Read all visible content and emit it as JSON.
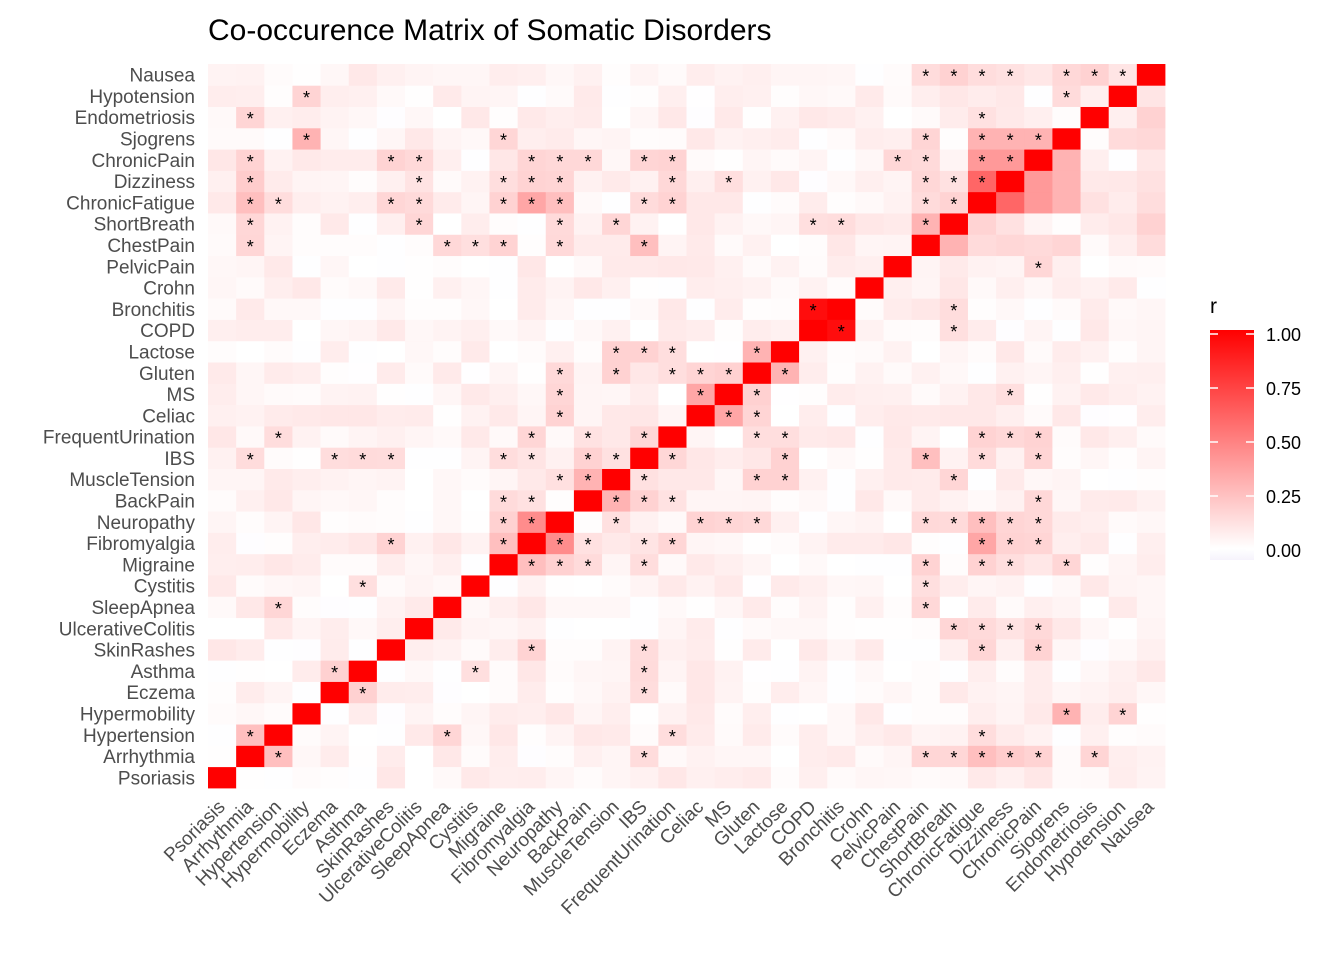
{
  "chart_data": {
    "type": "heatmap",
    "title": "Co-occurence Matrix of Somatic Disorders",
    "xlabel": "",
    "ylabel": "",
    "variables": [
      "Psoriasis",
      "Arrhythmia",
      "Hypertension",
      "Hypermobility",
      "Eczema",
      "Asthma",
      "SkinRashes",
      "UlcerativeColitis",
      "SleepApnea",
      "Cystitis",
      "Migraine",
      "Fibromyalgia",
      "Neuropathy",
      "BackPain",
      "MuscleTension",
      "IBS",
      "FrequentUrination",
      "Celiac",
      "MS",
      "Gluten",
      "Lactose",
      "COPD",
      "Bronchitis",
      "Crohn",
      "PelvicPain",
      "ChestPain",
      "ShortBreath",
      "ChronicFatigue",
      "Dizziness",
      "ChronicPain",
      "Sjogrens",
      "Endometriosis",
      "Hypotension",
      "Nausea"
    ],
    "significant_pairs": [
      [
        "Nausea",
        "ChestPain"
      ],
      [
        "Nausea",
        "ShortBreath"
      ],
      [
        "Nausea",
        "ChronicFatigue"
      ],
      [
        "Nausea",
        "Dizziness"
      ],
      [
        "Nausea",
        "Sjogrens"
      ],
      [
        "Nausea",
        "Endometriosis"
      ],
      [
        "Nausea",
        "Hypotension"
      ],
      [
        "Hypotension",
        "Hypermobility"
      ],
      [
        "Hypotension",
        "Sjogrens"
      ],
      [
        "Endometriosis",
        "Arrhythmia"
      ],
      [
        "Endometriosis",
        "ChronicFatigue"
      ],
      [
        "Sjogrens",
        "Hypermobility"
      ],
      [
        "Sjogrens",
        "Migraine"
      ],
      [
        "Sjogrens",
        "ChestPain"
      ],
      [
        "Sjogrens",
        "ChronicFatigue"
      ],
      [
        "Sjogrens",
        "Dizziness"
      ],
      [
        "Sjogrens",
        "ChronicPain"
      ],
      [
        "ChronicPain",
        "Arrhythmia"
      ],
      [
        "ChronicPain",
        "SkinRashes"
      ],
      [
        "ChronicPain",
        "UlcerativeColitis"
      ],
      [
        "ChronicPain",
        "Fibromyalgia"
      ],
      [
        "ChronicPain",
        "Neuropathy"
      ],
      [
        "ChronicPain",
        "BackPain"
      ],
      [
        "ChronicPain",
        "IBS"
      ],
      [
        "ChronicPain",
        "FrequentUrination"
      ],
      [
        "ChronicPain",
        "PelvicPain"
      ],
      [
        "ChronicPain",
        "ChestPain"
      ],
      [
        "ChronicPain",
        "ChronicFatigue"
      ],
      [
        "ChronicPain",
        "Dizziness"
      ],
      [
        "Dizziness",
        "Arrhythmia"
      ],
      [
        "Dizziness",
        "UlcerativeColitis"
      ],
      [
        "Dizziness",
        "Migraine"
      ],
      [
        "Dizziness",
        "Fibromyalgia"
      ],
      [
        "Dizziness",
        "Neuropathy"
      ],
      [
        "Dizziness",
        "FrequentUrination"
      ],
      [
        "Dizziness",
        "MS"
      ],
      [
        "Dizziness",
        "ChestPain"
      ],
      [
        "Dizziness",
        "ShortBreath"
      ],
      [
        "Dizziness",
        "ChronicFatigue"
      ],
      [
        "ChronicFatigue",
        "Arrhythmia"
      ],
      [
        "ChronicFatigue",
        "Hypertension"
      ],
      [
        "ChronicFatigue",
        "SkinRashes"
      ],
      [
        "ChronicFatigue",
        "UlcerativeColitis"
      ],
      [
        "ChronicFatigue",
        "Migraine"
      ],
      [
        "ChronicFatigue",
        "Fibromyalgia"
      ],
      [
        "ChronicFatigue",
        "Neuropathy"
      ],
      [
        "ChronicFatigue",
        "IBS"
      ],
      [
        "ChronicFatigue",
        "FrequentUrination"
      ],
      [
        "ChronicFatigue",
        "ChestPain"
      ],
      [
        "ChronicFatigue",
        "ShortBreath"
      ],
      [
        "ShortBreath",
        "Arrhythmia"
      ],
      [
        "ShortBreath",
        "UlcerativeColitis"
      ],
      [
        "ShortBreath",
        "Neuropathy"
      ],
      [
        "ShortBreath",
        "MuscleTension"
      ],
      [
        "ShortBreath",
        "COPD"
      ],
      [
        "ShortBreath",
        "Bronchitis"
      ],
      [
        "ShortBreath",
        "ChestPain"
      ],
      [
        "ChestPain",
        "Arrhythmia"
      ],
      [
        "ChestPain",
        "SleepApnea"
      ],
      [
        "ChestPain",
        "Cystitis"
      ],
      [
        "ChestPain",
        "Migraine"
      ],
      [
        "ChestPain",
        "Neuropathy"
      ],
      [
        "ChestPain",
        "IBS"
      ],
      [
        "PelvicPain",
        "ChronicPain"
      ],
      [
        "Bronchitis",
        "COPD"
      ],
      [
        "Bronchitis",
        "ShortBreath"
      ],
      [
        "COPD",
        "Bronchitis"
      ],
      [
        "COPD",
        "ShortBreath"
      ],
      [
        "Lactose",
        "MuscleTension"
      ],
      [
        "Lactose",
        "IBS"
      ],
      [
        "Lactose",
        "FrequentUrination"
      ],
      [
        "Lactose",
        "Gluten"
      ],
      [
        "Gluten",
        "Neuropathy"
      ],
      [
        "Gluten",
        "MuscleTension"
      ],
      [
        "Gluten",
        "FrequentUrination"
      ],
      [
        "Gluten",
        "Celiac"
      ],
      [
        "Gluten",
        "MS"
      ],
      [
        "Gluten",
        "Lactose"
      ],
      [
        "MS",
        "Neuropathy"
      ],
      [
        "MS",
        "Celiac"
      ],
      [
        "MS",
        "Gluten"
      ],
      [
        "MS",
        "Dizziness"
      ],
      [
        "Celiac",
        "Neuropathy"
      ],
      [
        "Celiac",
        "MS"
      ],
      [
        "Celiac",
        "Gluten"
      ],
      [
        "FrequentUrination",
        "Hypertension"
      ],
      [
        "FrequentUrination",
        "Fibromyalgia"
      ],
      [
        "FrequentUrination",
        "BackPain"
      ],
      [
        "FrequentUrination",
        "IBS"
      ],
      [
        "FrequentUrination",
        "Gluten"
      ],
      [
        "FrequentUrination",
        "Lactose"
      ],
      [
        "FrequentUrination",
        "ChronicFatigue"
      ],
      [
        "FrequentUrination",
        "Dizziness"
      ],
      [
        "FrequentUrination",
        "ChronicPain"
      ],
      [
        "IBS",
        "Arrhythmia"
      ],
      [
        "IBS",
        "Eczema"
      ],
      [
        "IBS",
        "Asthma"
      ],
      [
        "IBS",
        "SkinRashes"
      ],
      [
        "IBS",
        "Migraine"
      ],
      [
        "IBS",
        "Fibromyalgia"
      ],
      [
        "IBS",
        "BackPain"
      ],
      [
        "IBS",
        "MuscleTension"
      ],
      [
        "IBS",
        "FrequentUrination"
      ],
      [
        "IBS",
        "Lactose"
      ],
      [
        "IBS",
        "ChestPain"
      ],
      [
        "IBS",
        "ChronicFatigue"
      ],
      [
        "IBS",
        "ChronicPain"
      ],
      [
        "MuscleTension",
        "Neuropathy"
      ],
      [
        "MuscleTension",
        "BackPain"
      ],
      [
        "MuscleTension",
        "IBS"
      ],
      [
        "MuscleTension",
        "Gluten"
      ],
      [
        "MuscleTension",
        "Lactose"
      ],
      [
        "MuscleTension",
        "ShortBreath"
      ],
      [
        "BackPain",
        "Migraine"
      ],
      [
        "BackPain",
        "Fibromyalgia"
      ],
      [
        "BackPain",
        "MuscleTension"
      ],
      [
        "BackPain",
        "IBS"
      ],
      [
        "BackPain",
        "FrequentUrination"
      ],
      [
        "BackPain",
        "ChronicPain"
      ],
      [
        "Neuropathy",
        "Migraine"
      ],
      [
        "Neuropathy",
        "Fibromyalgia"
      ],
      [
        "Neuropathy",
        "MuscleTension"
      ],
      [
        "Neuropathy",
        "Celiac"
      ],
      [
        "Neuropathy",
        "MS"
      ],
      [
        "Neuropathy",
        "Gluten"
      ],
      [
        "Neuropathy",
        "ChestPain"
      ],
      [
        "Neuropathy",
        "ShortBreath"
      ],
      [
        "Neuropathy",
        "ChronicFatigue"
      ],
      [
        "Neuropathy",
        "Dizziness"
      ],
      [
        "Neuropathy",
        "ChronicPain"
      ],
      [
        "Fibromyalgia",
        "SkinRashes"
      ],
      [
        "Fibromyalgia",
        "Migraine"
      ],
      [
        "Fibromyalgia",
        "Neuropathy"
      ],
      [
        "Fibromyalgia",
        "BackPain"
      ],
      [
        "Fibromyalgia",
        "IBS"
      ],
      [
        "Fibromyalgia",
        "FrequentUrination"
      ],
      [
        "Fibromyalgia",
        "ChronicFatigue"
      ],
      [
        "Fibromyalgia",
        "Dizziness"
      ],
      [
        "Fibromyalgia",
        "ChronicPain"
      ],
      [
        "Migraine",
        "Fibromyalgia"
      ],
      [
        "Migraine",
        "Neuropathy"
      ],
      [
        "Migraine",
        "BackPain"
      ],
      [
        "Migraine",
        "IBS"
      ],
      [
        "Migraine",
        "ChestPain"
      ],
      [
        "Migraine",
        "ChronicFatigue"
      ],
      [
        "Migraine",
        "Dizziness"
      ],
      [
        "Migraine",
        "Sjogrens"
      ],
      [
        "Cystitis",
        "Asthma"
      ],
      [
        "Cystitis",
        "ChestPain"
      ],
      [
        "SleepApnea",
        "Hypertension"
      ],
      [
        "SleepApnea",
        "ChestPain"
      ],
      [
        "UlcerativeColitis",
        "ShortBreath"
      ],
      [
        "UlcerativeColitis",
        "ChronicFatigue"
      ],
      [
        "UlcerativeColitis",
        "Dizziness"
      ],
      [
        "UlcerativeColitis",
        "ChronicPain"
      ],
      [
        "SkinRashes",
        "Fibromyalgia"
      ],
      [
        "SkinRashes",
        "IBS"
      ],
      [
        "SkinRashes",
        "ChronicFatigue"
      ],
      [
        "SkinRashes",
        "ChronicPain"
      ],
      [
        "Asthma",
        "Eczema"
      ],
      [
        "Asthma",
        "Cystitis"
      ],
      [
        "Asthma",
        "IBS"
      ],
      [
        "Eczema",
        "Asthma"
      ],
      [
        "Eczema",
        "IBS"
      ],
      [
        "Hypermobility",
        "Sjogrens"
      ],
      [
        "Hypermobility",
        "Hypotension"
      ],
      [
        "Hypertension",
        "Arrhythmia"
      ],
      [
        "Hypertension",
        "SleepApnea"
      ],
      [
        "Hypertension",
        "FrequentUrination"
      ],
      [
        "Hypertension",
        "ChronicFatigue"
      ],
      [
        "Arrhythmia",
        "Hypertension"
      ],
      [
        "Arrhythmia",
        "IBS"
      ],
      [
        "Arrhythmia",
        "ChestPain"
      ],
      [
        "Arrhythmia",
        "ShortBreath"
      ],
      [
        "Arrhythmia",
        "ChronicFatigue"
      ],
      [
        "Arrhythmia",
        "Dizziness"
      ],
      [
        "Arrhythmia",
        "ChronicPain"
      ],
      [
        "Arrhythmia",
        "Endometriosis"
      ]
    ],
    "strong_pairs": [
      [
        "Arrhythmia",
        "Hypertension",
        0.25
      ],
      [
        "Bronchitis",
        "COPD",
        0.95
      ],
      [
        "ShortBreath",
        "ChestPain",
        0.3
      ],
      [
        "ChronicFatigue",
        "Dizziness",
        0.6
      ],
      [
        "ChronicFatigue",
        "ChronicPain",
        0.4
      ],
      [
        "Dizziness",
        "ChronicPain",
        0.4
      ],
      [
        "ChronicFatigue",
        "Sjogrens",
        0.3
      ],
      [
        "Dizziness",
        "Sjogrens",
        0.3
      ],
      [
        "ChronicPain",
        "Sjogrens",
        0.3
      ],
      [
        "Fibromyalgia",
        "Neuropathy",
        0.45
      ],
      [
        "Fibromyalgia",
        "ChronicFatigue",
        0.35
      ],
      [
        "Neuropathy",
        "ChronicFatigue",
        0.25
      ],
      [
        "Hypermobility",
        "Sjogrens",
        0.3
      ],
      [
        "Arrhythmia",
        "ChronicFatigue",
        0.25
      ],
      [
        "Arrhythmia",
        "Dizziness",
        0.2
      ],
      [
        "IBS",
        "ChestPain",
        0.25
      ],
      [
        "Migraine",
        "Fibromyalgia",
        0.25
      ],
      [
        "BackPain",
        "MuscleTension",
        0.3
      ],
      [
        "Celiac",
        "MS",
        0.35
      ],
      [
        "Gluten",
        "Lactose",
        0.3
      ]
    ],
    "legend": {
      "title": "r",
      "ticks": [
        "1.00",
        "0.75",
        "0.50",
        "0.25",
        "0.00"
      ],
      "range": [
        0,
        1
      ],
      "color_low": "#ffffff",
      "color_high": "#ff0000"
    },
    "colors": {
      "high": "#ff0000",
      "low": "#ffffff",
      "negative": "#f3f0fb"
    }
  }
}
